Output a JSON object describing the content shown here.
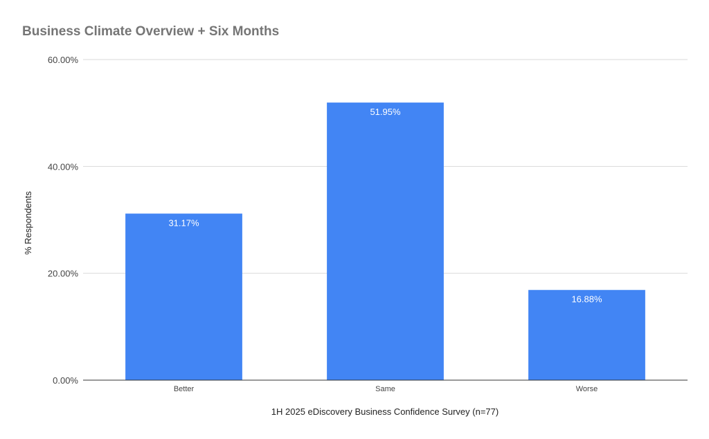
{
  "chart_data": {
    "type": "bar",
    "title": "Business Climate Overview + Six Months",
    "xlabel": "1H 2025 eDiscovery Business Confidence Survey (n=77)",
    "ylabel": "% Respondents",
    "categories": [
      "Better",
      "Same",
      "Worse"
    ],
    "values": [
      31.17,
      51.95,
      16.88
    ],
    "data_labels": [
      "31.17%",
      "51.95%",
      "16.88%"
    ],
    "ylim": [
      0,
      60
    ],
    "yticks": [
      0,
      20,
      40,
      60
    ],
    "ytick_labels": [
      "0.00%",
      "20.00%",
      "40.00%",
      "60.00%"
    ],
    "grid": true,
    "legend": "none",
    "colors": {
      "bar": "#4285f4",
      "grid": "#d9d9d9",
      "axis": "#333333",
      "title": "#757575"
    }
  }
}
